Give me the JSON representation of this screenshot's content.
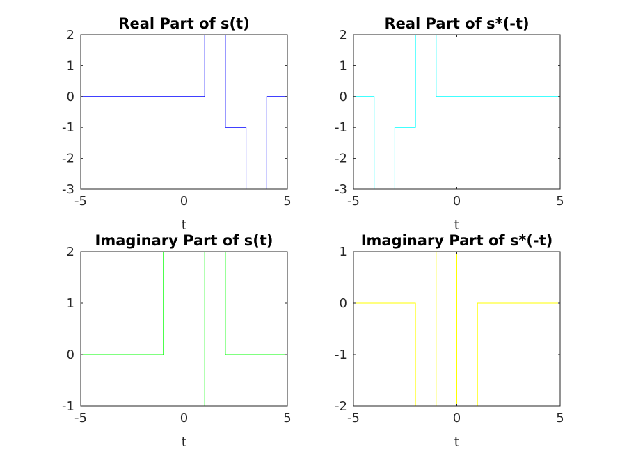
{
  "chart_data": [
    {
      "type": "line",
      "title": "Real Part of s(t)",
      "xlabel": "t",
      "ylabel": "",
      "xlim": [
        -5,
        5
      ],
      "ylim": [
        -3,
        2
      ],
      "xticks": [
        "-5",
        "0",
        "5"
      ],
      "yticks": [
        "2",
        "1",
        "0",
        "-1",
        "-2",
        "-3"
      ],
      "grid": false,
      "color": "#0000ff",
      "series": [
        {
          "x": [
            -5,
            1,
            1,
            2,
            2,
            3,
            3,
            4,
            4,
            5
          ],
          "y": [
            0,
            0,
            2,
            2,
            -1,
            -1,
            -3,
            -3,
            0,
            0
          ]
        }
      ]
    },
    {
      "type": "line",
      "title": "Real Part of s*(-t)",
      "xlabel": "t",
      "ylabel": "",
      "xlim": [
        -5,
        5
      ],
      "ylim": [
        -3,
        2
      ],
      "xticks": [
        "-5",
        "0",
        "5"
      ],
      "yticks": [
        "2",
        "1",
        "0",
        "-1",
        "-2",
        "-3"
      ],
      "grid": false,
      "color": "#00ffff",
      "series": [
        {
          "x": [
            -5,
            -4,
            -4,
            -3,
            -3,
            -2,
            -2,
            -1,
            -1,
            5
          ],
          "y": [
            0,
            0,
            -3,
            -3,
            -1,
            -1,
            2,
            2,
            0,
            0
          ]
        }
      ]
    },
    {
      "type": "line",
      "title": "Imaginary Part of s(t)",
      "xlabel": "t",
      "ylabel": "",
      "xlim": [
        -5,
        5
      ],
      "ylim": [
        -1,
        2
      ],
      "xticks": [
        "-5",
        "0",
        "5"
      ],
      "yticks": [
        "2",
        "1",
        "0",
        "-1"
      ],
      "grid": false,
      "color": "#00ff00",
      "series": [
        {
          "x": [
            -5,
            -1,
            -1,
            0,
            0,
            1,
            1,
            2,
            2,
            5
          ],
          "y": [
            0,
            0,
            2,
            2,
            -1,
            -1,
            2,
            2,
            0,
            0
          ]
        }
      ]
    },
    {
      "type": "line",
      "title": "Imaginary Part of s*(-t)",
      "xlabel": "t",
      "ylabel": "",
      "xlim": [
        -5,
        5
      ],
      "ylim": [
        -2,
        1
      ],
      "xticks": [
        "-5",
        "0",
        "5"
      ],
      "yticks": [
        "1",
        "0",
        "-1",
        "-2"
      ],
      "grid": false,
      "color": "#ffff00",
      "series": [
        {
          "x": [
            -5,
            -2,
            -2,
            -1,
            -1,
            0,
            0,
            1,
            1,
            5
          ],
          "y": [
            0,
            0,
            -2,
            -2,
            1,
            1,
            -2,
            -2,
            0,
            0
          ]
        }
      ]
    }
  ]
}
